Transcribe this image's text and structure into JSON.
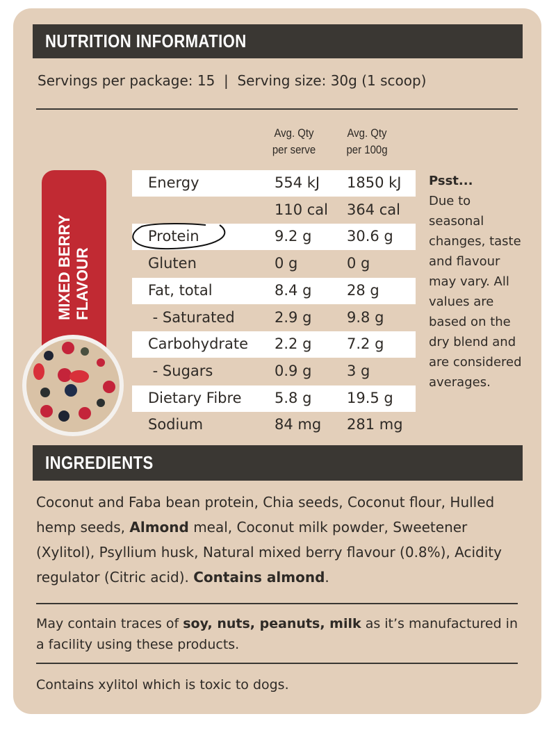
{
  "nutrition_title": "NUTRITION INFORMATION",
  "servings": "Servings per package: 15  |  Serving size: 30g (1 scoop)",
  "col_headers": [
    {
      "l1": "Avg. Qty",
      "l2": "per serve"
    },
    {
      "l1": "Avg. Qty",
      "l2": "per 100g"
    }
  ],
  "rows": [
    {
      "label": "Energy",
      "serve": "554 kJ",
      "per100": "1850 kJ"
    },
    {
      "label": "",
      "serve": "110 cal",
      "per100": "364 cal"
    },
    {
      "label": "Protein",
      "serve": "9.2 g",
      "per100": "30.6 g"
    },
    {
      "label": "Gluten",
      "serve": "0 g",
      "per100": "0 g"
    },
    {
      "label": "Fat, total",
      "serve": "8.4 g",
      "per100": "28 g"
    },
    {
      "label": " - Saturated",
      "serve": "2.9 g",
      "per100": "9.8 g"
    },
    {
      "label": "Carbohydrate",
      "serve": "2.2 g",
      "per100": "7.2 g"
    },
    {
      "label": " - Sugars",
      "serve": "0.9 g",
      "per100": "3 g"
    },
    {
      "label": "Dietary Fibre",
      "serve": "5.8 g",
      "per100": "19.5 g"
    },
    {
      "label": "Sodium",
      "serve": "84 mg",
      "per100": "281 mg"
    }
  ],
  "psst": {
    "title": "Psst...",
    "body": "Due to seasonal changes, taste and flavour may vary. All values are based on the dry blend and are considered averages."
  },
  "flavour": {
    "line1": "MIXED BERRY",
    "line2": "FLAVOUR"
  },
  "ingredients_title": "INGREDIENTS",
  "ingredients": {
    "p1": "Coconut and Faba bean protein, Chia seeds, Coconut flour, Hulled hemp seeds, ",
    "b1": "Almond",
    "p2": " meal, Coconut milk powder, Sweetener (Xylitol), Psyllium husk, Natural mixed berry flavour (0.8%), Acidity regulator (Citric acid). ",
    "b2": "Contains almond",
    "p3": "."
  },
  "allergen": {
    "p1": "May contain traces of ",
    "b1": "soy, nuts, peanuts, milk",
    "p2": " as it’s manufactured in a facility using these products."
  },
  "xylitol": "Contains xylitol which is toxic to dogs."
}
